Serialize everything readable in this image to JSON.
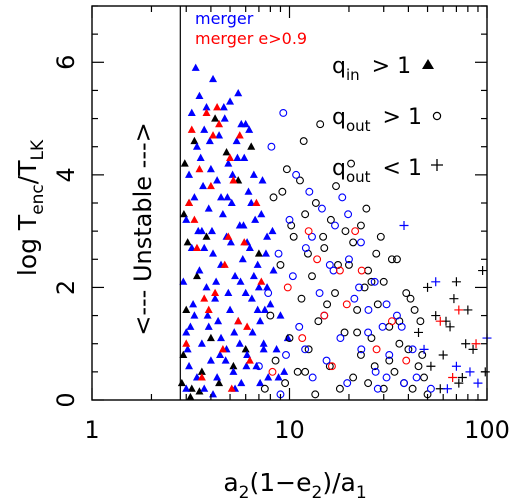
{
  "chart_data": {
    "type": "scatter",
    "x_scale": "log",
    "xlim": [
      1,
      100
    ],
    "ylim": [
      0,
      7
    ],
    "x_ticks": [
      "1",
      "10",
      "100"
    ],
    "y_ticks": [
      "0",
      "2",
      "4",
      "6"
    ],
    "xlabel": {
      "a": "a",
      "s2": "2",
      "mid": "(1−e",
      "s2b": "2",
      "end": ")/a",
      "s1": "1"
    },
    "ylabel": {
      "pre": "log T",
      "enc": "enc",
      "slash": "/T",
      "lk": "LK"
    },
    "unstable_boundary_x": 2.8,
    "unstable_label": "<--- Unstable --->",
    "legend_colors": [
      {
        "label": "merger",
        "color": "#0000ff"
      },
      {
        "label": "merger e>0.9",
        "color": "#ff0000"
      }
    ],
    "legend_markers": [
      {
        "q": "q",
        "sub": "in",
        "rel": "> 1",
        "marker": "triangle"
      },
      {
        "q": "q",
        "sub": "out",
        "rel": "> 1",
        "marker": "circle"
      },
      {
        "q": "q",
        "sub": "out",
        "rel": "< 1",
        "marker": "plus"
      }
    ],
    "series": [
      {
        "marker": "triangle",
        "color": "#000000",
        "x": [
          2.85,
          2.9,
          3.0,
          3.2,
          3.4,
          3.1,
          2.95,
          3.6,
          4.0,
          4.4,
          3.3,
          3.8,
          5.2,
          4.8,
          6.0,
          3.05,
          2.92,
          3.5,
          4.2,
          5.5,
          3.15,
          6.4,
          7.0
        ],
        "y": [
          0.3,
          0.8,
          1.6,
          0.2,
          2.2,
          3.5,
          4.2,
          0.5,
          1.1,
          0.3,
          4.6,
          2.9,
          0.6,
          4.4,
          0.9,
          2.8,
          3.3,
          0.15,
          5.0,
          3.9,
          0.05,
          4.5,
          2.6
        ]
      },
      {
        "marker": "triangle",
        "color": "#0000ff",
        "x": [
          2.9,
          3.0,
          3.0,
          3.1,
          3.1,
          3.2,
          3.2,
          3.3,
          3.3,
          3.4,
          3.4,
          3.5,
          3.5,
          3.6,
          3.6,
          3.7,
          3.7,
          3.8,
          3.8,
          3.9,
          3.9,
          4.0,
          4.0,
          4.1,
          4.1,
          4.2,
          4.3,
          4.3,
          4.4,
          4.5,
          4.5,
          4.6,
          4.7,
          4.8,
          4.8,
          4.9,
          5.0,
          5.0,
          5.1,
          5.2,
          5.3,
          5.4,
          5.5,
          5.5,
          5.6,
          5.7,
          5.8,
          5.9,
          6.0,
          6.1,
          6.2,
          6.3,
          6.5,
          6.6,
          6.8,
          7.0,
          7.2,
          7.4,
          7.6,
          7.8,
          8.0,
          8.3,
          8.6,
          9.0,
          9.4,
          9.8,
          3.05,
          3.25,
          3.45,
          3.65,
          3.85,
          4.05,
          4.25,
          4.45,
          4.65,
          4.85,
          5.05,
          5.25,
          5.45,
          5.65,
          5.85,
          6.05,
          6.25,
          6.45,
          6.7,
          6.9,
          7.1,
          7.3,
          7.5,
          7.7,
          3.0,
          3.35,
          3.7,
          4.1,
          4.5,
          4.9,
          5.3,
          5.7,
          6.1,
          6.6,
          7.1,
          7.7,
          8.2,
          8.8,
          3.15,
          3.55,
          3.95,
          4.35,
          4.75,
          5.15,
          5.6,
          6.0,
          6.4,
          6.9,
          7.4
        ],
        "y": [
          2.1,
          3.2,
          1.2,
          0.6,
          4.0,
          2.7,
          5.1,
          1.5,
          3.6,
          0.4,
          4.5,
          2.3,
          5.4,
          1.0,
          3.0,
          4.8,
          0.2,
          2.0,
          5.2,
          3.4,
          1.3,
          4.1,
          0.7,
          2.6,
          5.7,
          1.8,
          3.9,
          0.4,
          4.7,
          2.4,
          1.1,
          3.3,
          5.0,
          0.9,
          2.9,
          4.2,
          1.6,
          5.3,
          3.5,
          0.5,
          2.2,
          4.6,
          1.4,
          5.45,
          3.1,
          0.3,
          2.5,
          4.3,
          1.9,
          0.8,
          3.7,
          2.7,
          1.2,
          4.0,
          0.6,
          2.0,
          3.3,
          1.0,
          2.6,
          0.4,
          1.7,
          2.3,
          0.9,
          1.5,
          0.5,
          1.1,
          0.9,
          1.7,
          3.0,
          3.8,
          1.5,
          3.0,
          2.1,
          0.8,
          5.2,
          3.6,
          2.8,
          1.2,
          4.3,
          2.1,
          3.1,
          0.6,
          4.8,
          1.8,
          3.2,
          2.4,
          0.3,
          3.9,
          1.6,
          2.9,
          0.2,
          5.9,
          2.7,
          0.1,
          3.6,
          1.9,
          0.2,
          4.9,
          2.8,
          2.2,
          1.4,
          2.0,
          3.0,
          0.4,
          1.3,
          4.3,
          4.6,
          1.4,
          0.7,
          4.0,
          1.0,
          4.9,
          3.5,
          1.6,
          0.9
        ]
      },
      {
        "marker": "triangle",
        "color": "#ff0000",
        "x": [
          3.0,
          3.2,
          3.4,
          3.6,
          3.8,
          4.0,
          4.2,
          4.4,
          4.6,
          4.9,
          5.2,
          5.5,
          5.9,
          6.3,
          6.8,
          7.2,
          3.1,
          3.5,
          3.9,
          4.3,
          4.7,
          5.1,
          3.3,
          3.7,
          4.1,
          5.0,
          5.6,
          6.1
        ],
        "y": [
          1.0,
          4.8,
          2.7,
          0.4,
          5.1,
          3.8,
          1.9,
          4.9,
          0.9,
          2.9,
          3.9,
          1.4,
          2.8,
          0.7,
          3.5,
          2.1,
          3.5,
          4.1,
          1.6,
          5.2,
          2.4,
          0.2,
          3.2,
          1.8,
          4.7,
          4.3,
          4.7,
          1.3
        ]
      },
      {
        "marker": "circle",
        "color": "#000000",
        "x": [
          7.5,
          8.0,
          8.5,
          9.0,
          9.5,
          10,
          10.5,
          11,
          11.5,
          12,
          12.5,
          13,
          13.5,
          14,
          15,
          16,
          17,
          18,
          19,
          20,
          21,
          22,
          23,
          24,
          25,
          26,
          27,
          28,
          30,
          32,
          34,
          36,
          38,
          40,
          42,
          45,
          48,
          50,
          9.2,
          10.2,
          11.3,
          12.4,
          13.6,
          14.8,
          16.2,
          17.6,
          19.2,
          21,
          23,
          25,
          27.5,
          30,
          33,
          36,
          39,
          43,
          8.3,
          9.7,
          11.8,
          14.3,
          17.2,
          20.5,
          24.5,
          29,
          35,
          41,
          47,
          12,
          22,
          32,
          46,
          15.5,
          26
        ],
        "y": [
          0.2,
          1.5,
          0.7,
          2.4,
          0.3,
          1.1,
          2.9,
          0.5,
          1.8,
          3.3,
          0.9,
          2.2,
          0.1,
          1.4,
          2.7,
          0.6,
          1.9,
          0.2,
          1.2,
          2.4,
          0.4,
          1.6,
          0.8,
          2.0,
          0.3,
          1.1,
          0.6,
          1.7,
          0.2,
          1.3,
          0.5,
          1.0,
          0.3,
          0.9,
          0.2,
          0.6,
          0.4,
          0.1,
          3.7,
          3.1,
          3.9,
          2.6,
          3.5,
          2.9,
          3.2,
          2.4,
          3.0,
          2.8,
          3.1,
          2.3,
          2.6,
          2.1,
          2.5,
          1.4,
          1.9,
          1.6,
          3.6,
          4.1,
          4.6,
          4.9,
          3.8,
          4.2,
          3.4,
          2.9,
          2.5,
          1.8,
          0.8,
          0.5,
          1.2,
          0.7,
          1.4,
          1.7,
          2.1
        ]
      },
      {
        "marker": "circle",
        "color": "#0000ff",
        "x": [
          7.0,
          7.8,
          8.8,
          9.6,
          10.4,
          11.2,
          12.1,
          13.1,
          14.2,
          15.4,
          16.7,
          18.1,
          19.6,
          21.3,
          23.1,
          25.1,
          27.3,
          29.6,
          32,
          35,
          38,
          42,
          8.1,
          9.3,
          10.8,
          12.6,
          14.6,
          17,
          19.8,
          23,
          27,
          31,
          37,
          44,
          52,
          10,
          13,
          16,
          20,
          25,
          31,
          9,
          12,
          15,
          18.5,
          22.5,
          28
        ],
        "y": [
          0.6,
          1.9,
          2.6,
          0.8,
          2.2,
          1.3,
          2.7,
          0.4,
          1.9,
          0.7,
          2.3,
          1.1,
          0.3,
          1.8,
          0.9,
          1.6,
          0.5,
          1.3,
          0.8,
          1.5,
          0.3,
          0.9,
          4.5,
          5.1,
          4.0,
          3.7,
          3.4,
          3.1,
          3.3,
          2.8,
          2.1,
          1.7,
          1.3,
          0.4,
          0.2,
          3.2,
          2.9,
          2.4,
          2.5,
          1.2,
          0.4,
          0.1,
          0.9,
          1.5,
          3.6,
          2.0,
          0.2
        ]
      },
      {
        "marker": "circle",
        "color": "#ff0000",
        "x": [
          8.2,
          9.8,
          11.6,
          13.8,
          16.4,
          19.5,
          23.2,
          27.6,
          33,
          39,
          12.5,
          15,
          18,
          21.5
        ],
        "y": [
          0.5,
          2.0,
          1.1,
          2.5,
          0.6,
          1.7,
          2.3,
          0.9,
          1.4,
          0.7,
          3.0,
          1.5,
          2.3,
          3.0
        ]
      },
      {
        "marker": "plus",
        "color": "#000000",
        "x": [
          45,
          50,
          55,
          60,
          65,
          70,
          75,
          80,
          85,
          95,
          58,
          68,
          78,
          98,
          52,
          62,
          72
        ],
        "y": [
          1.2,
          2.0,
          1.5,
          0.8,
          1.3,
          2.1,
          0.4,
          1.6,
          0.9,
          2.3,
          0.2,
          1.8,
          1.0,
          0.5,
          0.6,
          1.4,
          0.3
        ]
      },
      {
        "marker": "plus",
        "color": "#0000ff",
        "x": [
          38,
          55,
          70,
          90,
          100,
          48,
          63,
          82
        ],
        "y": [
          3.1,
          2.1,
          0.6,
          0.3,
          1.1,
          0.9,
          0.2,
          0.5
        ]
      },
      {
        "marker": "plus",
        "color": "#ff0000",
        "x": [
          58,
          72,
          88,
          67
        ],
        "y": [
          1.4,
          1.6,
          1.0,
          0.4
        ]
      }
    ]
  }
}
